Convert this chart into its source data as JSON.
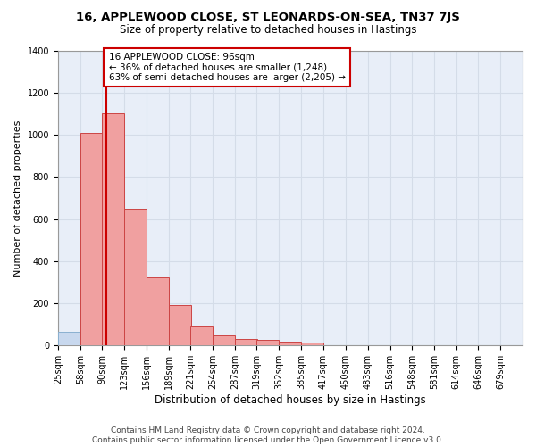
{
  "title_line1": "16, APPLEWOOD CLOSE, ST LEONARDS-ON-SEA, TN37 7JS",
  "title_line2": "Size of property relative to detached houses in Hastings",
  "xlabel": "Distribution of detached houses by size in Hastings",
  "ylabel": "Number of detached properties",
  "bin_labels": [
    "25sqm",
    "58sqm",
    "90sqm",
    "123sqm",
    "156sqm",
    "189sqm",
    "221sqm",
    "254sqm",
    "287sqm",
    "319sqm",
    "352sqm",
    "385sqm",
    "417sqm",
    "450sqm",
    "483sqm",
    "516sqm",
    "548sqm",
    "581sqm",
    "614sqm",
    "646sqm",
    "679sqm"
  ],
  "bin_edges": [
    25,
    58,
    90,
    123,
    156,
    189,
    221,
    254,
    287,
    319,
    352,
    385,
    417,
    450,
    483,
    516,
    548,
    581,
    614,
    646,
    679
  ],
  "bar_heights": [
    65,
    1010,
    1100,
    650,
    325,
    190,
    90,
    47,
    30,
    25,
    20,
    15,
    0,
    0,
    0,
    0,
    0,
    0,
    0,
    0
  ],
  "bar_color_normal": "#c8d8ee",
  "bar_color_highlight": "#f0a0a0",
  "bar_edge_color_normal": "#8ab0d0",
  "bar_edge_color_highlight": "#cc4444",
  "highlight_bins": [
    1,
    2,
    3,
    4,
    5,
    6,
    7,
    8,
    9,
    10,
    11
  ],
  "property_size": 96,
  "red_line_color": "#cc0000",
  "annotation_text": "16 APPLEWOOD CLOSE: 96sqm\n← 36% of detached houses are smaller (1,248)\n63% of semi-detached houses are larger (2,205) →",
  "annotation_box_color": "#ffffff",
  "annotation_box_edge_color": "#cc0000",
  "ylim": [
    0,
    1400
  ],
  "yticks": [
    0,
    200,
    400,
    600,
    800,
    1000,
    1200,
    1400
  ],
  "grid_color": "#d4dce8",
  "background_color": "#e8eef8",
  "footnote": "Contains HM Land Registry data © Crown copyright and database right 2024.\nContains public sector information licensed under the Open Government Licence v3.0.",
  "title_fontsize": 9.5,
  "subtitle_fontsize": 8.5,
  "xlabel_fontsize": 8.5,
  "ylabel_fontsize": 8,
  "tick_fontsize": 7,
  "annotation_fontsize": 7.5,
  "footnote_fontsize": 6.5
}
